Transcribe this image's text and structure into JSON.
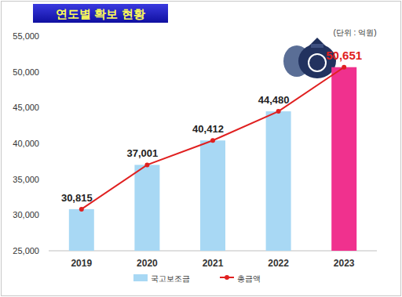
{
  "chart_data": {
    "type": "bar",
    "title": "연도별 확보 현황",
    "annotations": [
      "(단위 : 억원)"
    ],
    "categories": [
      "2019",
      "2020",
      "2021",
      "2022",
      "2023"
    ],
    "series": [
      {
        "name": "국고보조금",
        "type": "bar",
        "colors": [
          "#a8d8f4",
          "#a8d8f4",
          "#a8d8f4",
          "#a8d8f4",
          "#f0318e"
        ],
        "values": [
          30815,
          37001,
          40412,
          44480,
          50651
        ]
      },
      {
        "name": "총금액",
        "type": "line",
        "color": "#e02020",
        "marker": "circle",
        "line_style": "solid",
        "data_labels": true,
        "values": [
          30815,
          37001,
          40412,
          44480,
          50651
        ],
        "value_labels": [
          "30,815",
          "37,001",
          "40,412",
          "44,480",
          "50,651"
        ]
      }
    ],
    "ylim": [
      25000,
      55000
    ],
    "yticks": [
      {
        "value": 25000,
        "label": "25,000"
      },
      {
        "value": 30000,
        "label": "30,000"
      },
      {
        "value": 35000,
        "label": "35,000"
      },
      {
        "value": 40000,
        "label": "40,000"
      },
      {
        "value": 45000,
        "label": "45,000"
      },
      {
        "value": 50000,
        "label": "50,000"
      },
      {
        "value": 55000,
        "label": "55,000"
      }
    ],
    "grid": false,
    "legend": "bottom"
  }
}
